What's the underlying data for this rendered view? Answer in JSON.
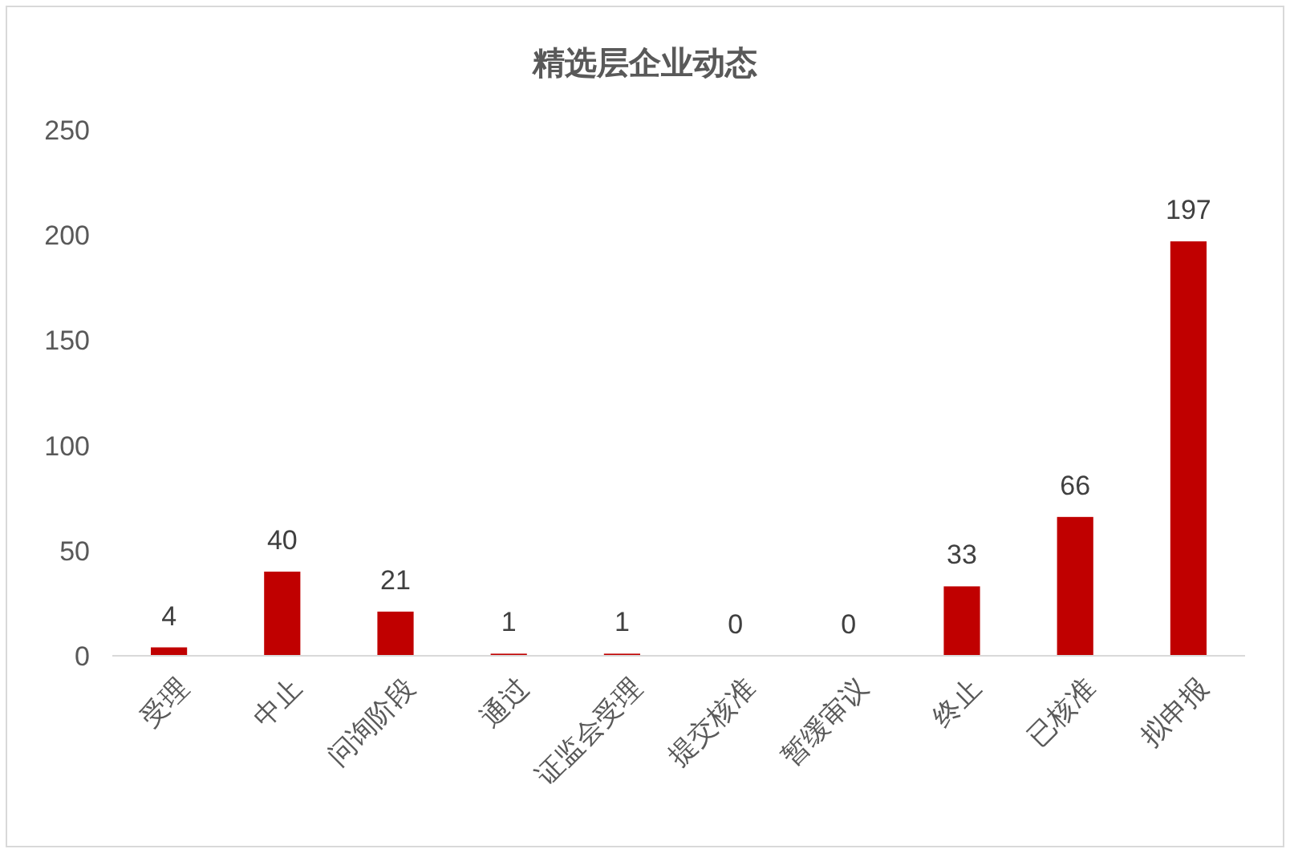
{
  "chart_data": {
    "type": "bar",
    "title": "精选层企业动态",
    "categories": [
      "受理",
      "中止",
      "问询阶段",
      "通过",
      "证监会受理",
      "提交核准",
      "暂缓审议",
      "终止",
      "已核准",
      "拟申报"
    ],
    "values": [
      4,
      40,
      21,
      1,
      1,
      0,
      0,
      33,
      66,
      197
    ],
    "color": "#c00000",
    "ylim": [
      0,
      250
    ],
    "yticks": [
      0,
      50,
      100,
      150,
      200,
      250
    ],
    "grid": false,
    "data_labels": true
  }
}
